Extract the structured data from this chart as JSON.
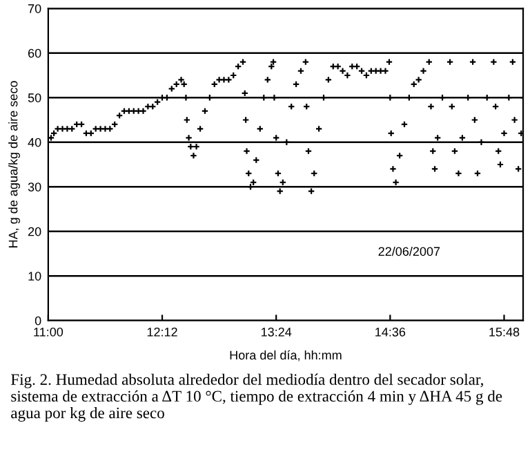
{
  "chart_data": {
    "type": "scatter",
    "xlabel": "Hora del día, hh:mm",
    "ylabel": "HA, g de agua/kg de aire seco",
    "annotations": [
      "22/06/2007",
      "Fig. 2. Humedad absoluta alrededor del mediodía dentro del secador solar, sistema de extracción a ΔT 10 °C, tiempo de extracción 4 min y ΔHA 45 g de agua por kg de aire seco"
    ],
    "xlim": [
      11,
      16
    ],
    "xticks": [
      {
        "value": 11,
        "label": "11:00"
      },
      {
        "value": 12.2,
        "label": "12:12"
      },
      {
        "value": 13.4,
        "label": "13:24"
      },
      {
        "value": 14.6,
        "label": "14:36"
      },
      {
        "value": 15.8,
        "label": "15:48"
      }
    ],
    "ylim": [
      0,
      70
    ],
    "yticks": [
      0,
      10,
      20,
      30,
      40,
      50,
      60,
      70
    ],
    "grid": "y",
    "marker": "cross",
    "legend": false,
    "series": [
      {
        "color": "#000000",
        "x": [
          11.0,
          11.03,
          11.06,
          11.1,
          11.15,
          11.2,
          11.25,
          11.3,
          11.35,
          11.4,
          11.45,
          11.5,
          11.55,
          11.6,
          11.65,
          11.7,
          11.75,
          11.8,
          11.85,
          11.9,
          11.95,
          12.0,
          12.05,
          12.1,
          12.15,
          12.2,
          12.25,
          12.3,
          12.35,
          12.4,
          12.43,
          12.45,
          12.46,
          12.48,
          12.5,
          12.53,
          12.56,
          12.6,
          12.65,
          12.7,
          12.75,
          12.8,
          12.85,
          12.9,
          12.95,
          13.0,
          13.05,
          13.07,
          13.08,
          13.09,
          13.11,
          13.13,
          13.16,
          13.19,
          13.23,
          13.27,
          13.31,
          13.35,
          13.37,
          13.38,
          13.4,
          13.42,
          13.44,
          13.47,
          13.51,
          13.56,
          13.61,
          13.66,
          13.71,
          13.72,
          13.74,
          13.77,
          13.8,
          13.85,
          13.9,
          13.95,
          14.0,
          14.05,
          14.1,
          14.15,
          14.2,
          14.25,
          14.3,
          14.35,
          14.4,
          14.45,
          14.5,
          14.55,
          14.59,
          14.6,
          14.61,
          14.63,
          14.66,
          14.7,
          14.75,
          14.8,
          14.85,
          14.9,
          14.95,
          15.01,
          15.03,
          15.05,
          15.07,
          15.1,
          15.15,
          15.23,
          15.25,
          15.28,
          15.32,
          15.36,
          15.42,
          15.47,
          15.49,
          15.52,
          15.56,
          15.62,
          15.69,
          15.71,
          15.74,
          15.76,
          15.8,
          15.85,
          15.89,
          15.91,
          15.95,
          15.98,
          16.0
        ],
        "values": [
          41,
          41,
          42,
          43,
          43,
          43,
          43,
          44,
          44,
          42,
          42,
          43,
          43,
          43,
          43,
          44,
          46,
          47,
          47,
          47,
          47,
          47,
          48,
          48,
          49,
          50,
          50,
          52,
          53,
          54,
          53,
          50,
          45,
          41,
          39,
          37,
          39,
          43,
          47,
          50,
          53,
          54,
          54,
          54,
          55,
          57,
          58,
          51,
          45,
          38,
          33,
          30,
          31,
          36,
          43,
          50,
          54,
          57,
          58,
          50,
          41,
          33,
          29,
          31,
          40,
          48,
          53,
          56,
          58,
          48,
          38,
          29,
          33,
          43,
          50,
          54,
          57,
          57,
          56,
          55,
          57,
          57,
          56,
          55,
          56,
          56,
          56,
          56,
          58,
          50,
          42,
          34,
          31,
          37,
          44,
          50,
          53,
          54,
          56,
          58,
          48,
          38,
          34,
          41,
          50,
          58,
          48,
          38,
          33,
          41,
          50,
          58,
          45,
          33,
          40,
          50,
          58,
          48,
          38,
          35,
          42,
          50,
          58,
          45,
          34,
          42,
          50
        ]
      }
    ]
  }
}
